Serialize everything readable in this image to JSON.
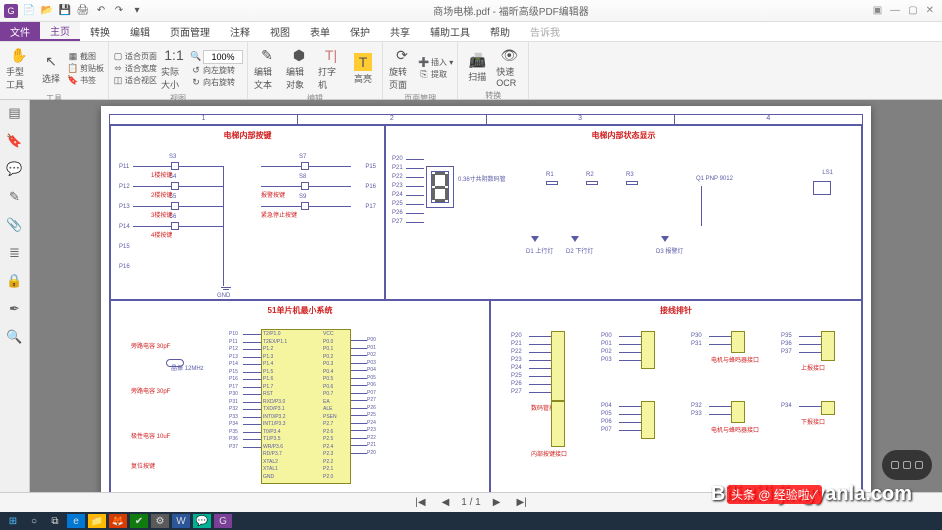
{
  "title": "商场电梯.pdf - 福昕高级PDF编辑器",
  "quickaccess": [
    "G",
    "📄",
    "✎",
    "▾"
  ],
  "menu": {
    "file": "文件",
    "tabs": [
      "主页",
      "转换",
      "编辑",
      "页面管理",
      "注释",
      "视图",
      "表单",
      "保护",
      "共享",
      "辅助工具",
      "帮助",
      "告诉我"
    ]
  },
  "ribbon": {
    "g1": {
      "label": "工具",
      "hand": "手型工具",
      "select": "选择",
      "items": [
        "截图",
        "剪贴板",
        "书签"
      ]
    },
    "g2": {
      "size": "实际大小",
      "fit": [
        "适合页面",
        "适合宽度",
        "适合视区"
      ]
    },
    "g3": {
      "label": "视图",
      "zoom": "100%",
      "rot": [
        "向左旋转",
        "向右旋转"
      ]
    },
    "g4": {
      "label": "编辑",
      "t1": "编辑文本",
      "t2": "编辑对象",
      "t3": "打字机",
      "t4": "高亮"
    },
    "g5": {
      "label": "页面管理",
      "rot": "旋转页面",
      "ins": "插入 ▾",
      "ext": "提取"
    },
    "g6": {
      "label": "转换",
      "scan": "扫描",
      "ocr": "快速OCR"
    }
  },
  "schematic": {
    "cols": [
      "1",
      "2",
      "3",
      "4"
    ],
    "blk1": {
      "title": "电梯内部按键",
      "pins": [
        "P11",
        "P12",
        "P13",
        "P14",
        "P15",
        "P16",
        "P17"
      ],
      "labs": [
        "1楼按键",
        "2楼按键",
        "3楼按键",
        "4楼按键",
        "报警按键",
        "紧急停止按键"
      ],
      "S": [
        "S3",
        "S4",
        "S5",
        "S6",
        "S7",
        "S8",
        "S9",
        "S10"
      ]
    },
    "blk2": {
      "title": "电梯内部状态显示",
      "seg": "0.36寸共阴数码管",
      "parts": [
        "R1",
        "R2",
        "R3",
        "D1 上行灯",
        "D2 下行灯",
        "D3 报警灯",
        "Q1 PNP 9012",
        "LS1"
      ],
      "pins": [
        "P20",
        "P21",
        "P22",
        "P23",
        "P24",
        "P25",
        "P26",
        "P27"
      ]
    },
    "blk3": {
      "title": "51单片机最小系统",
      "caps": [
        "旁路电容 30pF",
        "旁路电容 30pF",
        "晶振 12MHz",
        "极性电容 10uF",
        "复位按键"
      ],
      "chipL": [
        "T2/P1.0",
        "T2EX/P1.1",
        "P1.2",
        "P1.3",
        "P1.4",
        "P1.5",
        "P1.6",
        "P1.7",
        "RST",
        "RXD/P3.0",
        "TXD/P3.1",
        "INT0/P3.2",
        "INT1/P3.3",
        "T0/P3.4",
        "T1/P3.5",
        "WR/P3.6",
        "RD/P3.7",
        "XTAL2",
        "XTAL1",
        "GND"
      ],
      "chipR": [
        "VCC",
        "P0.0",
        "P0.1",
        "P0.2",
        "P0.3",
        "P0.4",
        "P0.5",
        "P0.6",
        "P0.7",
        "EA",
        "ALE",
        "PSEN",
        "P2.7",
        "P2.6",
        "P2.5",
        "P2.4",
        "P2.3",
        "P2.2",
        "P2.1",
        "P2.0"
      ],
      "leftP": [
        "P10",
        "P11",
        "P12",
        "P13",
        "P14",
        "P15",
        "P16",
        "P17",
        "P30",
        "P31",
        "P32",
        "P33",
        "P34",
        "P35",
        "P36",
        "P37"
      ],
      "rightP": [
        "P00",
        "P01",
        "P02",
        "P03",
        "P04",
        "P05",
        "P06",
        "P07",
        "P27",
        "P26",
        "P25",
        "P24",
        "P23",
        "P22",
        "P21",
        "P20"
      ]
    },
    "blk4": {
      "title": "接线排针",
      "heads": [
        "X0",
        "X1",
        "X2",
        "X3",
        "X4",
        "X5",
        "X6"
      ],
      "hp": [
        {
          "p": [
            "P20",
            "P21",
            "P22",
            "P23",
            "P24",
            "P25",
            "P26",
            "P27"
          ],
          "l": "数码管接口"
        },
        {
          "p": [
            "",
            "",
            "",
            "",
            ""
          ],
          "l": "内部按键接口"
        },
        {
          "p": [
            "P00",
            "P01",
            "P02",
            "P03"
          ],
          "l": ""
        },
        {
          "p": [
            "P04",
            "P05",
            "P06",
            "P07"
          ],
          "l": ""
        },
        {
          "p": [
            "P30",
            "P31"
          ],
          "l": "电机与蜂鸣器接口"
        },
        {
          "p": [
            "P32",
            "P33"
          ],
          "l": "电机与蜂鸣器接口"
        },
        {
          "p": [
            "P35",
            "P36",
            "P37"
          ],
          "l": "上报接口"
        },
        {
          "p": [
            "P34"
          ],
          "l": "下报接口"
        }
      ]
    }
  },
  "status": {
    "page": "1 / 1"
  },
  "watermarks": {
    "wm1": "BiliBili jingyanla.com",
    "wm2": "头条 @ 经验啦✓"
  }
}
